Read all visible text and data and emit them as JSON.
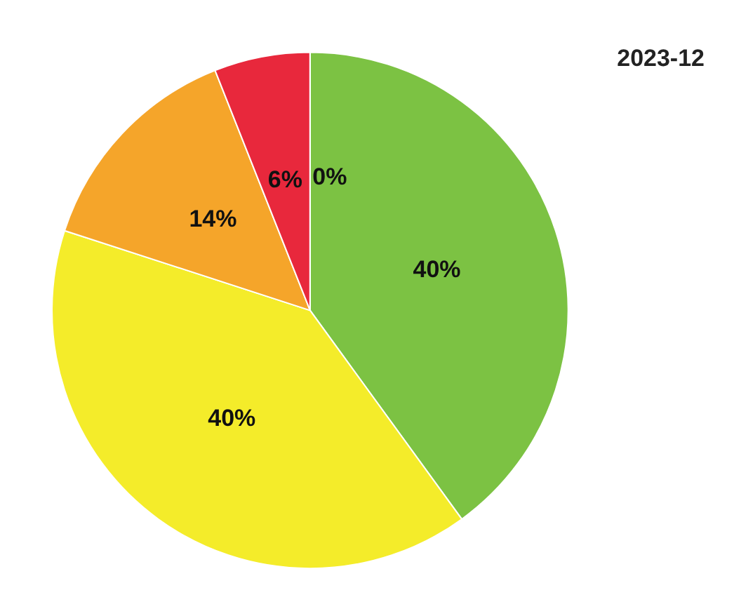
{
  "chart_data": {
    "type": "pie",
    "title": "2023-12",
    "categories": [
      null,
      null,
      null,
      null,
      null
    ],
    "values": [
      40,
      40,
      14,
      6,
      0
    ],
    "colors": [
      "#7cc243",
      "#f4ec2a",
      "#f5a52a",
      "#e8283c",
      "#c0182c"
    ],
    "value_labels": [
      "40%",
      "40%",
      "14%",
      "6%",
      "0%"
    ]
  }
}
